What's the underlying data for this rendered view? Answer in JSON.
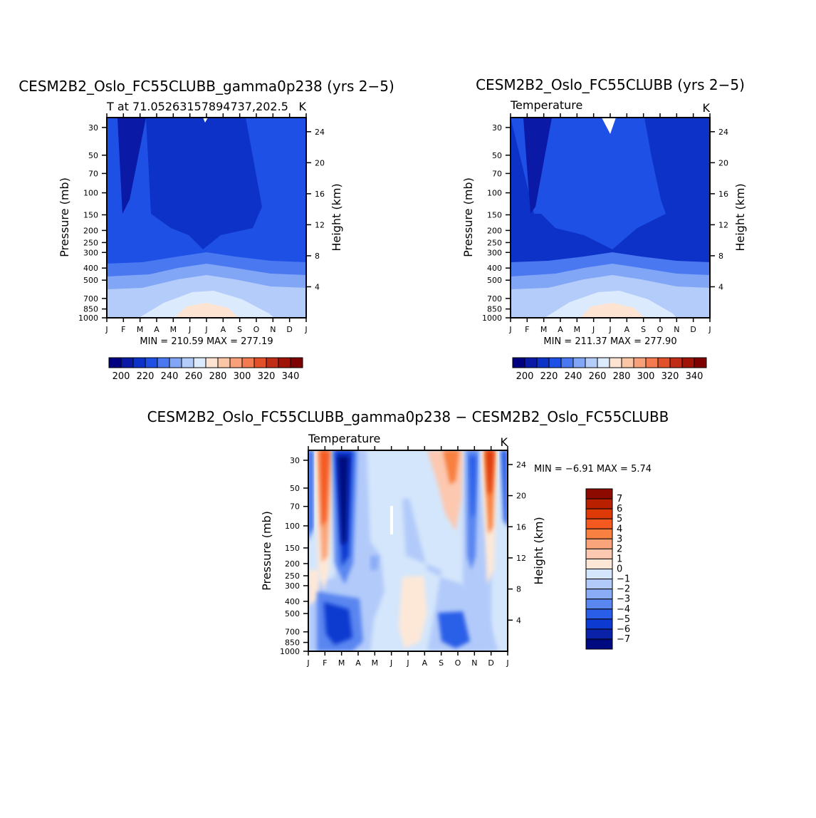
{
  "chart_data": [
    {
      "type": "contour",
      "title": "CESM2B2_Oslo_FC55CLUBB_gamma0p238 (yrs 2−5)",
      "subtitle_left": "T at 71.05263157894737,202.5",
      "subtitle_right": "K",
      "ylabel": "Pressure (mb)",
      "y2label": "Height (km)",
      "stats": "MIN = 210.59  MAX = 277.19",
      "x_ticks": [
        "J",
        "F",
        "M",
        "A",
        "M",
        "J",
        "J",
        "A",
        "S",
        "O",
        "N",
        "D",
        "J"
      ],
      "y_ticks": [
        30,
        50,
        70,
        100,
        150,
        200,
        250,
        300,
        400,
        500,
        700,
        850,
        1000
      ],
      "y2_ticks": [
        24,
        20,
        16,
        12,
        8,
        4
      ],
      "ylim": [
        1000,
        25
      ],
      "colorbar_labels": [
        200,
        220,
        240,
        260,
        280,
        300,
        320,
        340
      ],
      "colorbar_colors": [
        "#000080",
        "#0a1aa6",
        "#0d32c8",
        "#1e50e6",
        "#4a78f0",
        "#82a6f6",
        "#b4ccfa",
        "#dceafd",
        "#fde4d2",
        "#fbc6a6",
        "#f8a07a",
        "#f47a50",
        "#e2502a",
        "#c02c14",
        "#a01408",
        "#7f0000"
      ],
      "min": 210.59,
      "max": 277.19
    },
    {
      "type": "contour",
      "title": "CESM2B2_Oslo_FC55CLUBB (yrs 2−5)",
      "subtitle_left": "Temperature",
      "subtitle_right": "K",
      "ylabel": "Pressure (mb)",
      "y2label": "Height (km)",
      "stats": "MIN = 211.37  MAX = 277.90",
      "x_ticks": [
        "J",
        "F",
        "M",
        "A",
        "M",
        "J",
        "J",
        "A",
        "S",
        "O",
        "N",
        "D",
        "J"
      ],
      "y_ticks": [
        30,
        50,
        70,
        100,
        150,
        200,
        250,
        300,
        400,
        500,
        700,
        850,
        1000
      ],
      "y2_ticks": [
        24,
        20,
        16,
        12,
        8,
        4
      ],
      "ylim": [
        1000,
        25
      ],
      "colorbar_labels": [
        200,
        220,
        240,
        260,
        280,
        300,
        320,
        340
      ],
      "min": 211.37,
      "max": 277.9
    },
    {
      "type": "contour",
      "title": "CESM2B2_Oslo_FC55CLUBB_gamma0p238 − CESM2B2_Oslo_FC55CLUBB",
      "subtitle_left": "Temperature",
      "subtitle_right": "K",
      "ylabel": "Pressure (mb)",
      "y2label": "Height (km)",
      "stats": "MIN =   −6.91  MAX =    5.74",
      "x_ticks": [
        "J",
        "F",
        "M",
        "A",
        "M",
        "J",
        "J",
        "A",
        "S",
        "O",
        "N",
        "D",
        "J"
      ],
      "y_ticks": [
        30,
        50,
        70,
        100,
        150,
        200,
        250,
        300,
        400,
        500,
        700,
        850,
        1000
      ],
      "y2_ticks": [
        24,
        20,
        16,
        12,
        8,
        4
      ],
      "ylim": [
        1000,
        25
      ],
      "colorbar_labels": [
        "7",
        "6",
        "5",
        "4",
        "3",
        "2",
        "1",
        "0",
        "−1",
        "−2",
        "−3",
        "−4",
        "−5",
        "−6",
        "−7"
      ],
      "colorbar_colors": [
        "#8c0a00",
        "#b82000",
        "#dd3a08",
        "#f45a20",
        "#f88040",
        "#f9a47a",
        "#fcc8b0",
        "#fde8d8",
        "#d4e6fb",
        "#b2cafa",
        "#8aacf6",
        "#5a86f0",
        "#2a5ee8",
        "#0d3ad0",
        "#0a22a8",
        "#000a80"
      ],
      "min": -6.91,
      "max": 5.74
    }
  ]
}
